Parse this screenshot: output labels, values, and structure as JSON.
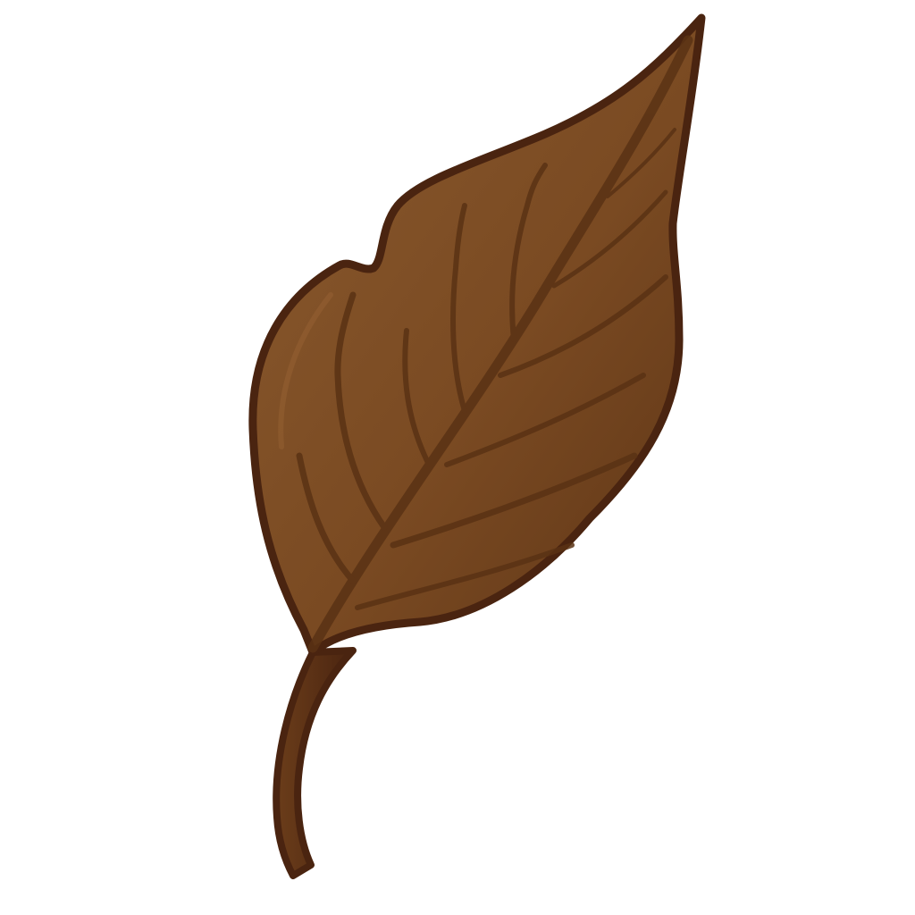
{
  "illustration": {
    "subject": "leaf-icon",
    "colors": {
      "background": "#ffffff",
      "blade_light": "#8a5a2e",
      "blade_mid": "#7a4a22",
      "blade_dark": "#5e3516",
      "vein": "#5a3214",
      "outline": "#4a2410",
      "stem": "#6b3d1a"
    }
  }
}
